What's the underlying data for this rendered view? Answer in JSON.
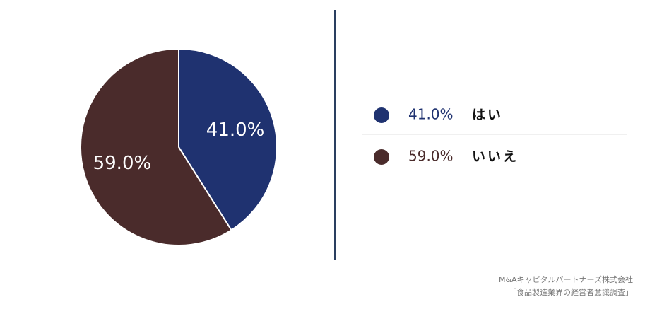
{
  "chart_data": {
    "type": "pie",
    "categories": [
      "はい",
      "いいえ"
    ],
    "values": [
      41.0,
      59.0
    ],
    "value_labels": [
      "41.0%",
      "59.0%"
    ],
    "colors": [
      "#1f3270",
      "#4a2b2b"
    ],
    "source": [
      "M&Aキャピタルパートナーズ株式会社",
      "「食品製造業界の経営者意識調査」"
    ]
  }
}
